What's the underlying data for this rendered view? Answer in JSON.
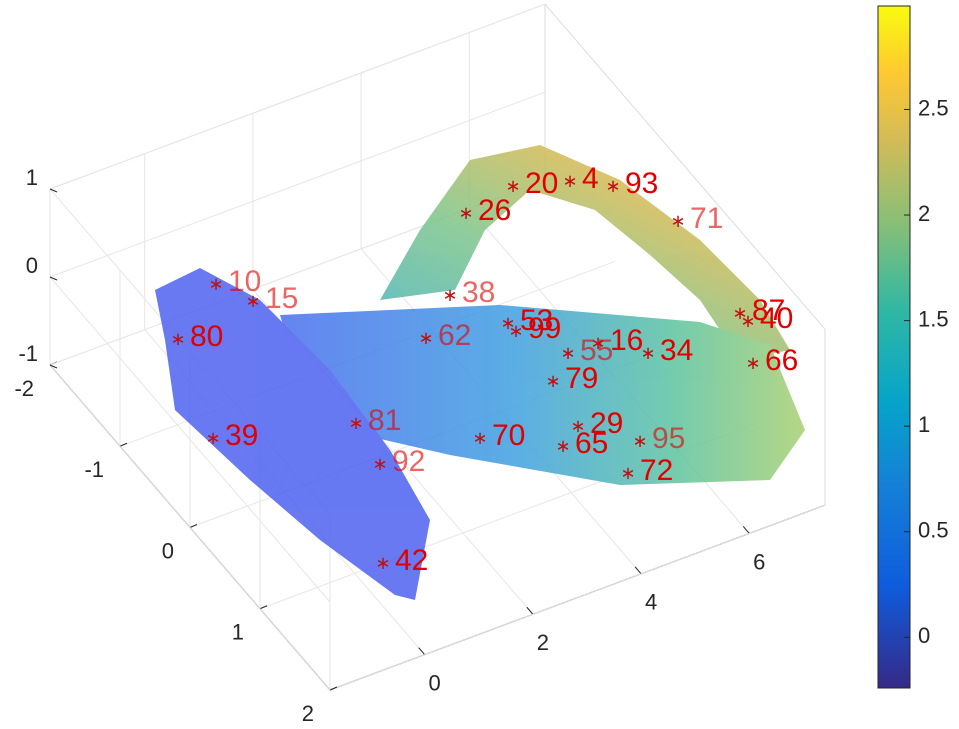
{
  "chart_data": {
    "type": "surface3d",
    "xlim": [
      -1.75,
      7.4
    ],
    "ylim": [
      -2,
      2
    ],
    "zlim": [
      -1,
      1
    ],
    "xticks": [
      0,
      2,
      4,
      6
    ],
    "yticks": [
      -2,
      -1,
      0,
      1,
      2
    ],
    "zticks": [
      -1,
      0,
      1
    ],
    "grid": true,
    "colorbar": {
      "clim": [
        -0.24,
        2.99
      ],
      "ticks": [
        0,
        0.5,
        1,
        1.5,
        2,
        2.5
      ]
    },
    "point_labels": [
      "80",
      "39",
      "92",
      "42",
      "70",
      "95",
      "16",
      "66",
      "71",
      "53",
      "20",
      "38",
      "40",
      "29",
      "62",
      "99",
      "79",
      "55",
      "34",
      "93",
      "10",
      "87",
      "4",
      "15",
      "26",
      "72",
      "81",
      "65"
    ]
  }
}
